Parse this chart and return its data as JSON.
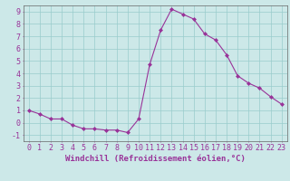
{
  "x": [
    0,
    1,
    2,
    3,
    4,
    5,
    6,
    7,
    8,
    9,
    10,
    11,
    12,
    13,
    14,
    15,
    16,
    17,
    18,
    19,
    20,
    21,
    22,
    23
  ],
  "y": [
    1.0,
    0.7,
    0.3,
    0.3,
    -0.2,
    -0.5,
    -0.5,
    -0.6,
    -0.6,
    -0.8,
    0.3,
    4.7,
    7.5,
    9.2,
    8.8,
    8.4,
    7.2,
    6.7,
    5.5,
    3.8,
    3.2,
    2.8,
    2.1,
    1.5
  ],
  "line_color": "#993399",
  "marker": "D",
  "marker_size": 2,
  "bg_color": "#cce8e8",
  "grid_color": "#99cccc",
  "xlabel": "Windchill (Refroidissement éolien,°C)",
  "xlabel_color": "#993399",
  "tick_color": "#993399",
  "axis_color": "#666666",
  "ylim": [
    -1.5,
    9.5
  ],
  "xlim": [
    -0.5,
    23.5
  ],
  "yticks": [
    -1,
    0,
    1,
    2,
    3,
    4,
    5,
    6,
    7,
    8,
    9
  ],
  "xticks": [
    0,
    1,
    2,
    3,
    4,
    5,
    6,
    7,
    8,
    9,
    10,
    11,
    12,
    13,
    14,
    15,
    16,
    17,
    18,
    19,
    20,
    21,
    22,
    23
  ],
  "font_size": 6,
  "label_font_size": 6.5
}
